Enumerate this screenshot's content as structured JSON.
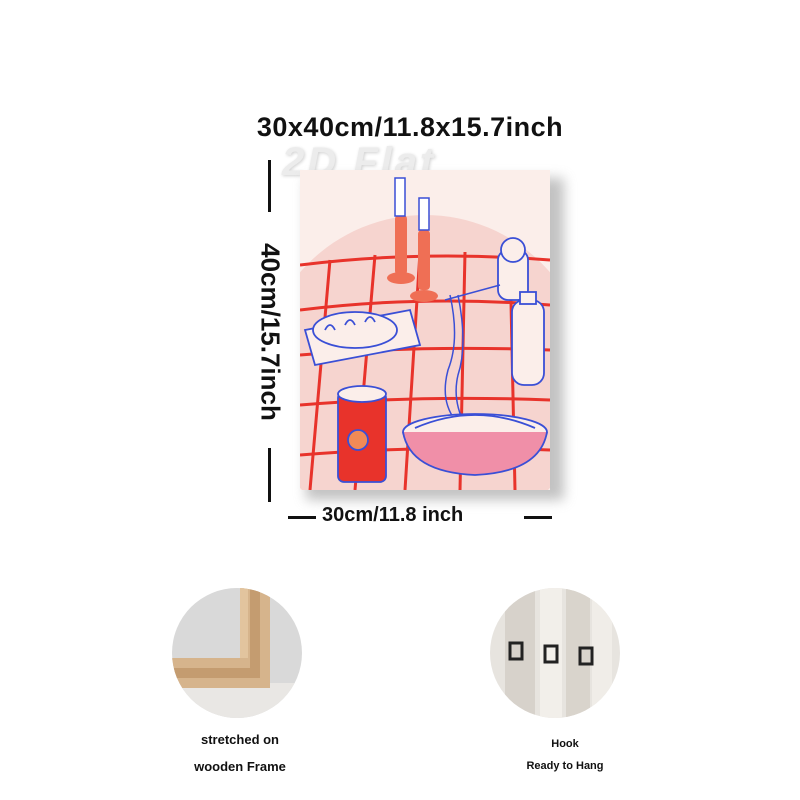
{
  "title": "30x40cm/11.8x15.7inch",
  "watermark": "2D Flat",
  "vertical_dimension": "40cm/15.7inch",
  "horizontal_dimension": "30cm/11.8 inch",
  "features": [
    {
      "lines": [
        "stretched on",
        "wooden Frame"
      ],
      "icon": "wooden-frame-corner"
    },
    {
      "lines": [
        "Hook",
        "Ready to Hang"
      ],
      "icon": "hanging-hook"
    }
  ],
  "artwork": {
    "subject": "dinner table still life",
    "colors": {
      "red": "#e8332b",
      "blue": "#3a4fd6",
      "cream": "#fbeeea",
      "pink": "#f6c9c4"
    }
  }
}
